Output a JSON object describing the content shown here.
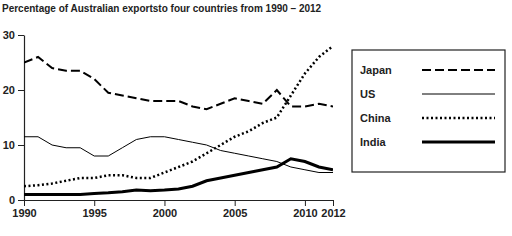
{
  "chart_data": {
    "type": "line",
    "title": "Percentage of Australian exportsto four countries from 1990 – 2012",
    "x": [
      1990,
      1991,
      1992,
      1993,
      1994,
      1995,
      1996,
      1997,
      1998,
      1999,
      2000,
      2001,
      2002,
      2003,
      2004,
      2005,
      2006,
      2007,
      2008,
      2009,
      2010,
      2011,
      2012
    ],
    "series": [
      {
        "name": "Japan",
        "color": "#000000",
        "line_style": "dashed",
        "values": [
          25,
          26,
          24,
          23.5,
          23.5,
          22,
          19.5,
          19,
          18.5,
          18,
          18,
          18,
          17,
          16.5,
          17.5,
          18.5,
          18,
          17.5,
          20,
          17,
          17,
          17.5,
          17
        ]
      },
      {
        "name": "US",
        "color": "#000000",
        "line_style": "solid",
        "values": [
          11.5,
          11.5,
          10,
          9.5,
          9.5,
          8,
          8,
          9.5,
          11,
          11.5,
          11.5,
          11,
          10.5,
          10,
          9,
          8.5,
          8,
          7.5,
          7,
          6,
          5.5,
          5,
          5
        ]
      },
      {
        "name": "China",
        "color": "#000000",
        "line_style": "dotted",
        "values": [
          2.5,
          2.7,
          3,
          3.5,
          4,
          4,
          4.5,
          4.5,
          4,
          4,
          5,
          6,
          7,
          8.5,
          10,
          11.5,
          12.5,
          14,
          15,
          19,
          23,
          26,
          28
        ]
      },
      {
        "name": "India",
        "color": "#000000",
        "line_style": "solid",
        "values": [
          1,
          1,
          1,
          1,
          1,
          1.2,
          1.3,
          1.5,
          1.8,
          1.7,
          1.8,
          2,
          2.5,
          3.5,
          4,
          4.5,
          5,
          5.5,
          6,
          7.5,
          7,
          6,
          5.5
        ]
      }
    ],
    "xlim": [
      1990,
      2012
    ],
    "xticks": [
      1990,
      1995,
      2000,
      2005,
      2010,
      2012
    ],
    "ylim": [
      0,
      30
    ],
    "yticks": [
      0,
      10,
      20,
      30
    ],
    "grid": false,
    "legend": "right"
  }
}
